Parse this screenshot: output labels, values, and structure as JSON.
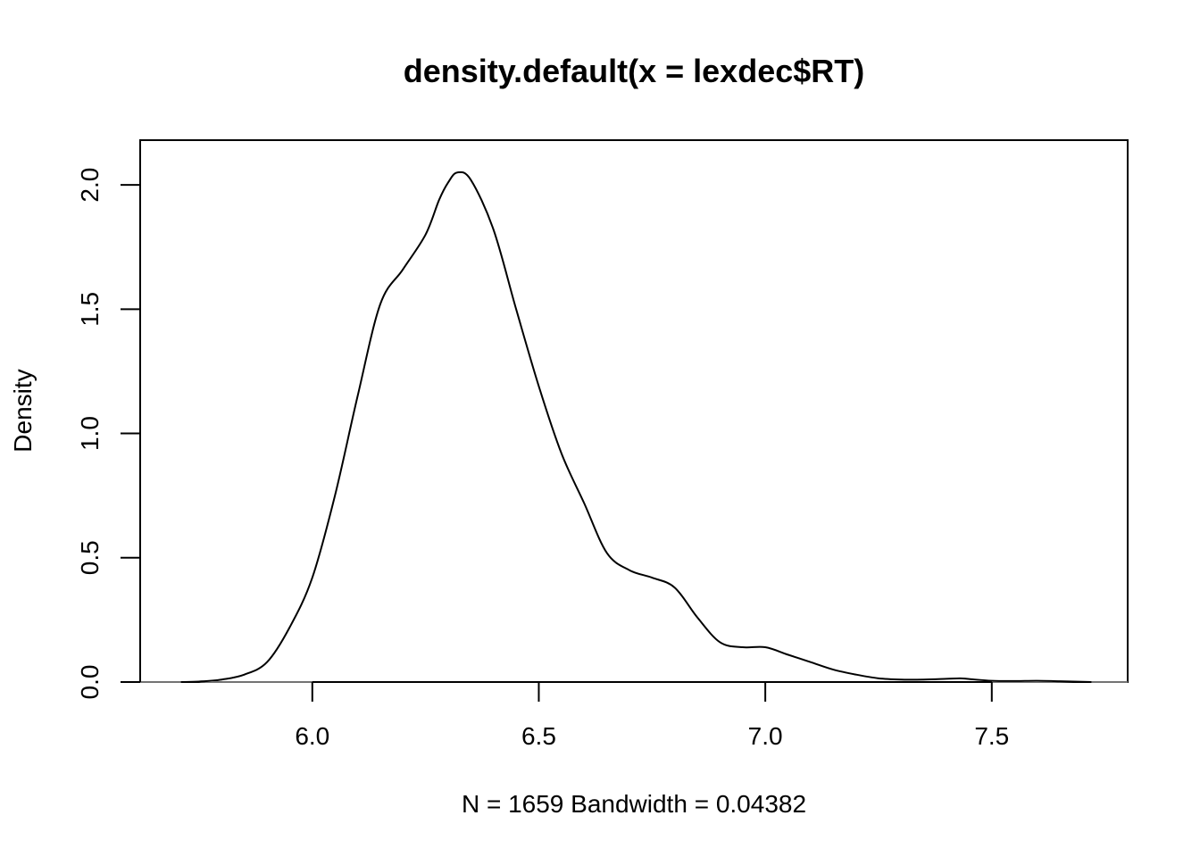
{
  "chart_data": {
    "type": "line",
    "title": "density.default(x = lexdec$RT)",
    "xlabel": "N = 1659   Bandwidth = 0.04382",
    "ylabel": "Density",
    "xlim": [
      5.62,
      7.8
    ],
    "ylim": [
      0,
      2.18
    ],
    "x_ticks": [
      6.0,
      6.5,
      7.0,
      7.5
    ],
    "x_tick_labels": [
      "6.0",
      "6.5",
      "7.0",
      "7.5"
    ],
    "y_ticks": [
      0.0,
      0.5,
      1.0,
      1.5,
      2.0
    ],
    "y_tick_labels": [
      "0.0",
      "0.5",
      "1.0",
      "1.5",
      "2.0"
    ],
    "grid": false,
    "zero_line": true,
    "series": [
      {
        "x": [
          5.71,
          5.75,
          5.8,
          5.85,
          5.9,
          5.95,
          6.0,
          6.05,
          6.1,
          6.15,
          6.2,
          6.25,
          6.28,
          6.3,
          6.32,
          6.35,
          6.4,
          6.45,
          6.5,
          6.55,
          6.6,
          6.65,
          6.7,
          6.75,
          6.8,
          6.85,
          6.9,
          6.95,
          7.0,
          7.05,
          7.1,
          7.15,
          7.2,
          7.25,
          7.3,
          7.35,
          7.4,
          7.43,
          7.45,
          7.5,
          7.55,
          7.6,
          7.65,
          7.72
        ],
        "y": [
          0.0,
          0.002,
          0.01,
          0.03,
          0.08,
          0.22,
          0.42,
          0.75,
          1.15,
          1.52,
          1.66,
          1.8,
          1.94,
          2.01,
          2.05,
          2.02,
          1.82,
          1.5,
          1.19,
          0.92,
          0.72,
          0.52,
          0.45,
          0.42,
          0.38,
          0.26,
          0.16,
          0.14,
          0.14,
          0.11,
          0.08,
          0.05,
          0.03,
          0.015,
          0.01,
          0.01,
          0.013,
          0.015,
          0.012,
          0.005,
          0.004,
          0.005,
          0.003,
          0.0
        ],
        "color": "#000000"
      }
    ]
  }
}
